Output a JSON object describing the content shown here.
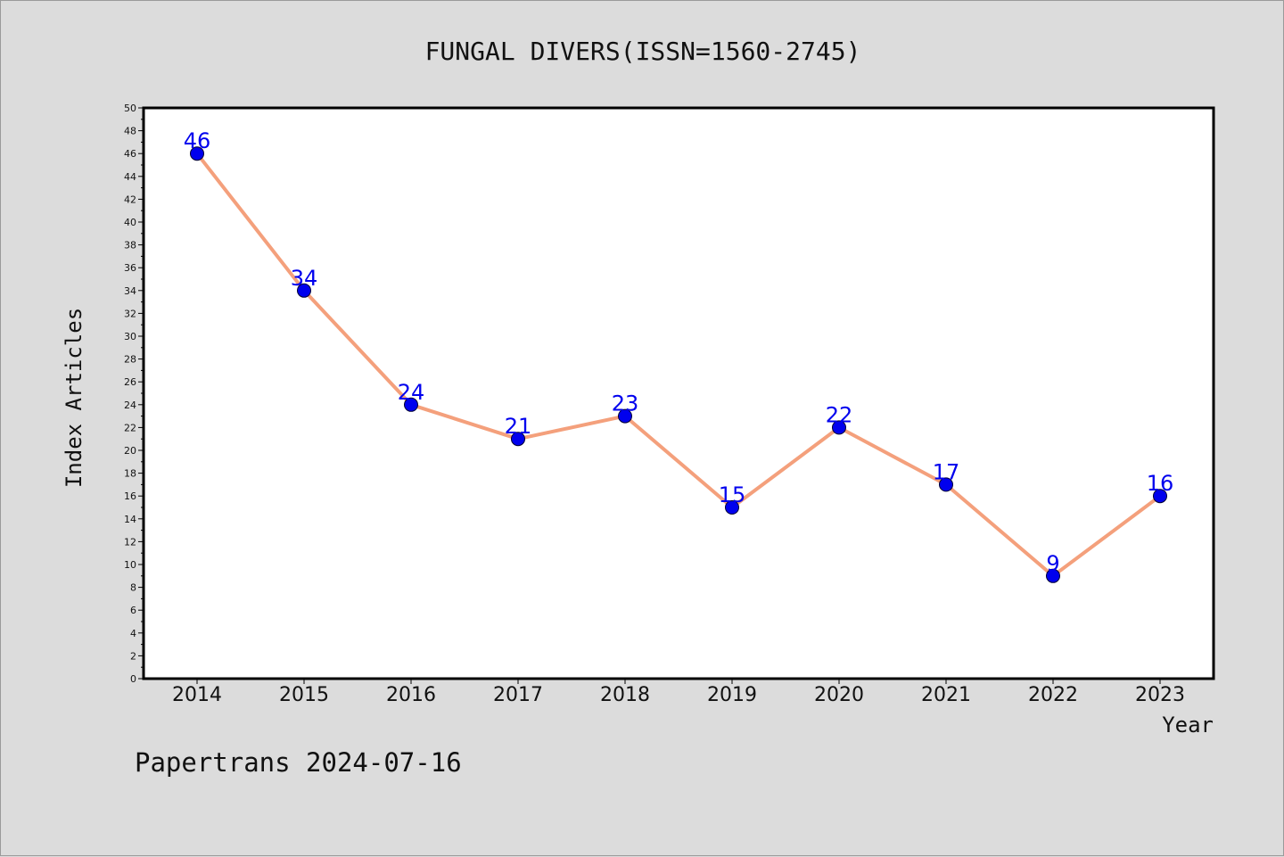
{
  "chart_data": {
    "type": "line",
    "title": "FUNGAL DIVERS(ISSN=1560-2745)",
    "xlabel": "Year",
    "ylabel": "Index Articles",
    "categories": [
      "2014",
      "2015",
      "2016",
      "2017",
      "2018",
      "2019",
      "2020",
      "2021",
      "2022",
      "2023"
    ],
    "series": [
      {
        "values": [
          46,
          34,
          24,
          21,
          23,
          15,
          22,
          17,
          9,
          16
        ]
      }
    ],
    "ylim": [
      0,
      50
    ],
    "ytick_step": 2,
    "grid": false,
    "data_labels": true,
    "colors": {
      "line": "#f4a07c",
      "marker": "#0000ee",
      "label": "#0000ee",
      "plot_bg": "#ffffff",
      "page_bg": "#dcdcdc"
    }
  },
  "footer": {
    "text": "Papertrans 2024-07-16"
  }
}
